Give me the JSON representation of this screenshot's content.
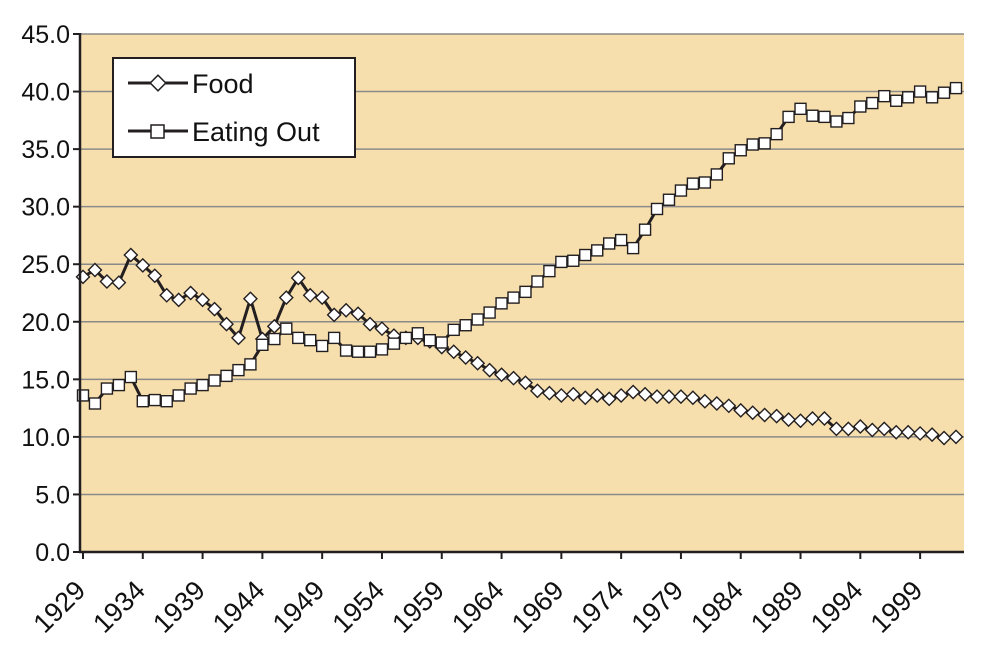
{
  "chart_data": {
    "type": "line",
    "title": "",
    "xlabel": "",
    "ylabel": "",
    "ylim": [
      0,
      45
    ],
    "yticks": [
      0,
      5,
      10,
      15,
      20,
      25,
      30,
      35,
      40,
      45
    ],
    "ytick_labels": [
      "0.0",
      "5.0",
      "10.0",
      "15.0",
      "20.0",
      "25.0",
      "30.0",
      "35.0",
      "40.0",
      "45.0"
    ],
    "xlim": [
      1929,
      2002
    ],
    "xticks": [
      1929,
      1934,
      1939,
      1944,
      1949,
      1954,
      1959,
      1964,
      1969,
      1974,
      1979,
      1984,
      1989,
      1994,
      1999
    ],
    "xtick_labels": [
      "1929",
      "1934",
      "1939",
      "1944",
      "1949",
      "1954",
      "1959",
      "1964",
      "1969",
      "1974",
      "1979",
      "1984",
      "1989",
      "1994",
      "1999"
    ],
    "grid": "horizontal",
    "legend_position": "top-left",
    "colors": {
      "plot_background": "#f7dfad",
      "line": "#231f20",
      "grid": "#8a8a8a",
      "marker_fill": "#ffffff"
    },
    "x": [
      1929,
      1930,
      1931,
      1932,
      1933,
      1934,
      1935,
      1936,
      1937,
      1938,
      1939,
      1940,
      1941,
      1942,
      1943,
      1944,
      1945,
      1946,
      1947,
      1948,
      1949,
      1950,
      1951,
      1952,
      1953,
      1954,
      1955,
      1956,
      1957,
      1958,
      1959,
      1960,
      1961,
      1962,
      1963,
      1964,
      1965,
      1966,
      1967,
      1968,
      1969,
      1970,
      1971,
      1972,
      1973,
      1974,
      1975,
      1976,
      1977,
      1978,
      1979,
      1980,
      1981,
      1982,
      1983,
      1984,
      1985,
      1986,
      1987,
      1988,
      1989,
      1990,
      1991,
      1992,
      1993,
      1994,
      1995,
      1996,
      1997,
      1998,
      1999,
      2000,
      2001,
      2002
    ],
    "series": [
      {
        "name": "Food",
        "marker": "diamond",
        "values": [
          23.9,
          24.5,
          23.5,
          23.4,
          25.8,
          24.9,
          24.0,
          22.3,
          21.9,
          22.5,
          21.9,
          21.1,
          19.8,
          18.6,
          22.0,
          18.5,
          19.6,
          22.1,
          23.8,
          22.3,
          22.1,
          20.6,
          21.0,
          20.7,
          19.8,
          19.4,
          18.8,
          18.6,
          18.6,
          18.3,
          17.8,
          17.4,
          16.9,
          16.4,
          15.8,
          15.4,
          15.1,
          14.7,
          14.0,
          13.8,
          13.6,
          13.7,
          13.4,
          13.6,
          13.3,
          13.6,
          13.9,
          13.7,
          13.5,
          13.5,
          13.5,
          13.4,
          13.1,
          12.9,
          12.7,
          12.3,
          12.1,
          11.9,
          11.8,
          11.5,
          11.4,
          11.6,
          11.6,
          10.7,
          10.7,
          10.9,
          10.6,
          10.7,
          10.4,
          10.4,
          10.3,
          10.2,
          9.9,
          10.0
        ]
      },
      {
        "name": "Eating Out",
        "marker": "square",
        "values": [
          13.6,
          12.9,
          14.2,
          14.5,
          15.2,
          13.1,
          13.2,
          13.1,
          13.6,
          14.2,
          14.5,
          14.9,
          15.3,
          15.8,
          16.3,
          18.0,
          18.5,
          19.4,
          18.6,
          18.4,
          17.9,
          18.6,
          17.5,
          17.4,
          17.4,
          17.6,
          18.1,
          18.6,
          19.0,
          18.4,
          18.2,
          19.3,
          19.7,
          20.2,
          20.8,
          21.6,
          22.1,
          22.6,
          23.5,
          24.4,
          25.2,
          25.3,
          25.8,
          26.2,
          26.8,
          27.1,
          26.4,
          28.0,
          29.8,
          30.6,
          31.4,
          32.0,
          32.1,
          32.8,
          34.2,
          34.9,
          35.4,
          35.5,
          36.3,
          37.8,
          38.5,
          37.9,
          37.8,
          37.4,
          37.7,
          38.7,
          39.0,
          39.6,
          39.2,
          39.5,
          40.0,
          39.5,
          39.9,
          40.3
        ]
      }
    ]
  }
}
